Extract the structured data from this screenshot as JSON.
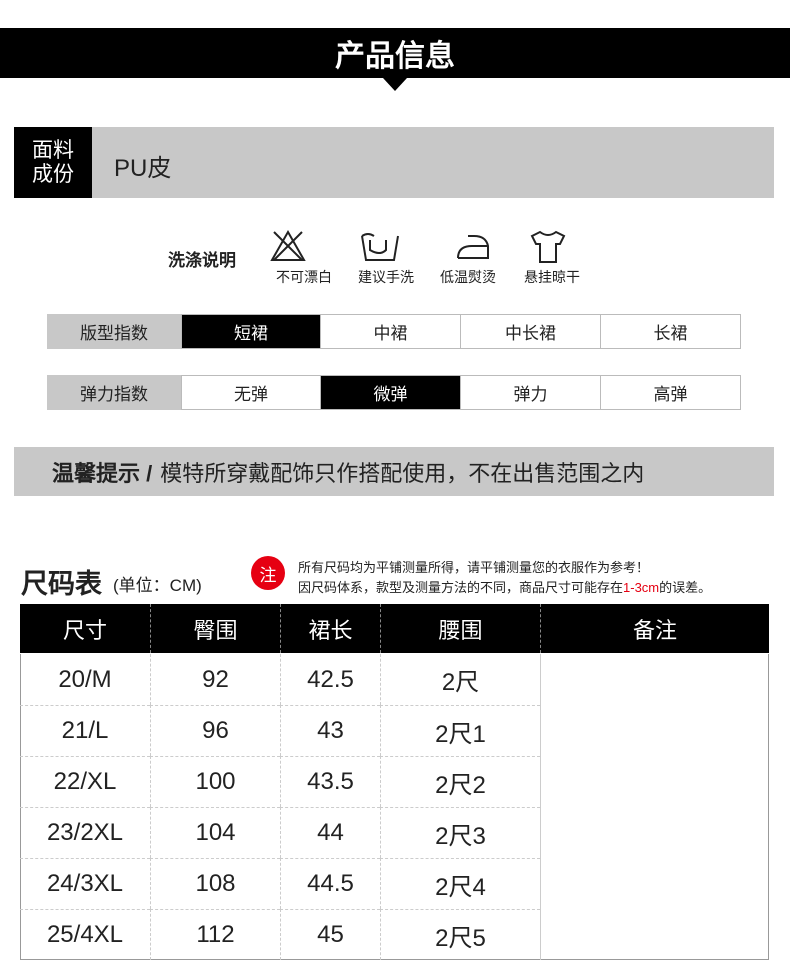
{
  "header": {
    "title": "产品信息"
  },
  "fabric": {
    "label": [
      "面料",
      "成份"
    ],
    "value": "PU皮"
  },
  "washing": {
    "label": "洗涤说明",
    "items": [
      "不可漂白",
      "建议手洗",
      "低温熨烫",
      "悬挂晾干"
    ]
  },
  "indexes": [
    {
      "label": "版型指数",
      "options": [
        "短裙",
        "中裙",
        "中长裙",
        "长裙"
      ],
      "selected": 0
    },
    {
      "label": "弹力指数",
      "options": [
        "无弹",
        "微弹",
        "弹力",
        "高弹"
      ],
      "selected": 1
    }
  ],
  "tip": {
    "label": "温馨提示 /",
    "text": "模特所穿戴配饰只作搭配使用，不在出售范围之内"
  },
  "size_table": {
    "title": "尺码表",
    "unit": "(单位：CM)",
    "note_icon": "注",
    "note_line1": "所有尺码均为平铺测量所得，请平铺测量您的衣服作为参考！",
    "note_line2": [
      "因尺码体系，款型及测量方法的不同，商品尺寸可能存在",
      "1-3cm",
      "的误差。"
    ],
    "columns": [
      "尺寸",
      "臀围",
      "裙长",
      "腰围",
      "备注"
    ],
    "rows": [
      [
        "20/M",
        "92",
        "42.5",
        "2尺"
      ],
      [
        "21/L",
        "96",
        "43",
        "2尺1"
      ],
      [
        "22/XL",
        "100",
        "43.5",
        "2尺2"
      ],
      [
        "23/2XL",
        "104",
        "44",
        "2尺3"
      ],
      [
        "24/3XL",
        "108",
        "44.5",
        "2尺4"
      ],
      [
        "25/4XL",
        "112",
        "45",
        "2尺5"
      ]
    ]
  }
}
